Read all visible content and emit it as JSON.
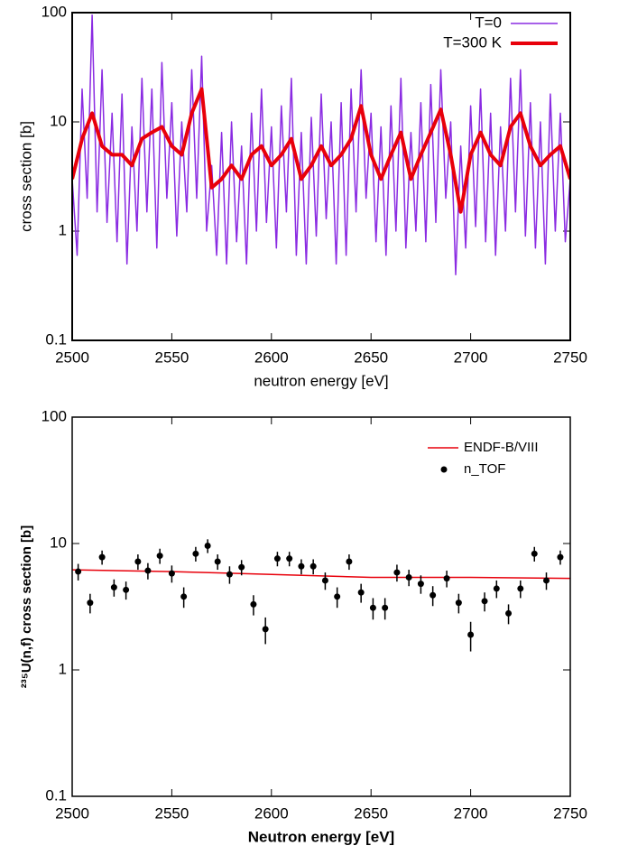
{
  "chart_data": [
    {
      "type": "line",
      "xlabel": "neutron energy [eV]",
      "ylabel": "cross section [b]",
      "yscale": "log",
      "xlim": [
        2500,
        2750
      ],
      "xticks": [
        2500,
        2550,
        2600,
        2650,
        2700,
        2750
      ],
      "ylim": [
        0.1,
        100
      ],
      "yticks": [
        0.1,
        1,
        10,
        100
      ],
      "legend": "upper right",
      "series": [
        {
          "name": "T=0",
          "color": "#8a2be2",
          "width": 1.5,
          "x": [
            2500,
            2502.5,
            2505,
            2507.5,
            2510,
            2512.5,
            2515,
            2517.5,
            2520,
            2522.5,
            2525,
            2527.5,
            2530,
            2532.5,
            2535,
            2537.5,
            2540,
            2542.5,
            2545,
            2547.5,
            2550,
            2552.5,
            2555,
            2557.5,
            2560,
            2562.5,
            2565,
            2567.5,
            2570,
            2572.5,
            2575,
            2577.5,
            2580,
            2582.5,
            2585,
            2587.5,
            2590,
            2592.5,
            2595,
            2597.5,
            2600,
            2602.5,
            2605,
            2607.5,
            2610,
            2612.5,
            2615,
            2617.5,
            2620,
            2622.5,
            2625,
            2627.5,
            2630,
            2632.5,
            2635,
            2637.5,
            2640,
            2642.5,
            2645,
            2647.5,
            2650,
            2652.5,
            2655,
            2657.5,
            2660,
            2662.5,
            2665,
            2667.5,
            2670,
            2672.5,
            2675,
            2677.5,
            2680,
            2682.5,
            2685,
            2687.5,
            2690,
            2692.5,
            2695,
            2697.5,
            2700,
            2702.5,
            2705,
            2707.5,
            2710,
            2712.5,
            2715,
            2717.5,
            2720,
            2722.5,
            2725,
            2727.5,
            2730,
            2732.5,
            2735,
            2737.5,
            2740,
            2742.5,
            2745,
            2747.5,
            2750
          ],
          "values": [
            3.0,
            0.6,
            20,
            2,
            95,
            1.5,
            30,
            1.2,
            12,
            0.8,
            18,
            0.5,
            9,
            1.0,
            25,
            1.5,
            20,
            0.7,
            35,
            2.0,
            15,
            0.9,
            10,
            1.5,
            30,
            2.0,
            40,
            1.0,
            4,
            0.6,
            8,
            0.5,
            10,
            0.8,
            6,
            0.5,
            12,
            1.0,
            20,
            1.2,
            9,
            0.7,
            14,
            1.5,
            25,
            0.6,
            8,
            0.5,
            11,
            0.9,
            18,
            1.3,
            10,
            0.5,
            15,
            0.6,
            20,
            1.5,
            30,
            2.0,
            12,
            0.8,
            9,
            0.6,
            14,
            1.0,
            25,
            0.7,
            8,
            1.0,
            15,
            0.8,
            22,
            1.2,
            30,
            2.0,
            10,
            0.4,
            6,
            0.7,
            14,
            1.1,
            20,
            0.8,
            12,
            0.6,
            9,
            1.0,
            25,
            1.5,
            30,
            0.9,
            15,
            0.7,
            10,
            0.5,
            18,
            1.0,
            12,
            0.8,
            3.0
          ]
        },
        {
          "name": "T=300 K",
          "color": "#e8000b",
          "width": 4,
          "x": [
            2500,
            2505,
            2510,
            2515,
            2520,
            2525,
            2530,
            2535,
            2540,
            2545,
            2550,
            2555,
            2560,
            2565,
            2570,
            2575,
            2580,
            2585,
            2590,
            2595,
            2600,
            2605,
            2610,
            2615,
            2620,
            2625,
            2630,
            2635,
            2640,
            2645,
            2650,
            2655,
            2660,
            2665,
            2670,
            2675,
            2680,
            2685,
            2690,
            2695,
            2700,
            2705,
            2710,
            2715,
            2720,
            2725,
            2730,
            2735,
            2740,
            2745,
            2750
          ],
          "values": [
            3,
            7,
            12,
            6,
            5,
            5,
            4,
            7,
            8,
            9,
            6,
            5,
            12,
            20,
            2.5,
            3,
            4,
            3,
            5,
            6,
            4,
            5,
            7,
            3,
            4,
            6,
            4,
            5,
            7,
            14,
            5,
            3,
            5,
            8,
            3,
            5,
            8,
            13,
            5,
            1.5,
            5,
            8,
            5,
            4,
            9,
            12,
            6,
            4,
            5,
            6,
            3
          ]
        }
      ]
    },
    {
      "type": "errorbar",
      "xlabel": "Neutron energy [eV]",
      "ylabel": "²³⁵U(n,f) cross section [b]",
      "yscale": "log",
      "xlim": [
        2500,
        2750
      ],
      "xticks": [
        2500,
        2550,
        2600,
        2650,
        2700,
        2750
      ],
      "ylim": [
        0.1,
        100
      ],
      "yticks": [
        0.1,
        1,
        10,
        100
      ],
      "legend": "upper right",
      "series": [
        {
          "name": "ENDF-B/VIII",
          "color": "#e8000b",
          "x": [
            2500,
            2550,
            2600,
            2650,
            2700,
            2750
          ],
          "values": [
            6.2,
            6.0,
            5.7,
            5.4,
            5.4,
            5.3
          ]
        },
        {
          "name": "n_TOF",
          "color": "#000000",
          "x": [
            2503,
            2509,
            2515,
            2521,
            2527,
            2533,
            2538,
            2544,
            2550,
            2556,
            2562,
            2568,
            2573,
            2579,
            2585,
            2591,
            2597,
            2603,
            2609,
            2615,
            2621,
            2627,
            2633,
            2639,
            2645,
            2651,
            2657,
            2663,
            2669,
            2675,
            2681,
            2688,
            2694,
            2700,
            2707,
            2713,
            2719,
            2725,
            2732,
            2738,
            2745
          ],
          "values": [
            6.0,
            3.4,
            7.8,
            4.5,
            4.3,
            7.2,
            6.1,
            8.0,
            5.8,
            3.8,
            8.3,
            9.6,
            7.2,
            5.7,
            6.5,
            3.3,
            2.1,
            7.6,
            7.6,
            6.6,
            6.6,
            5.1,
            3.8,
            7.2,
            4.1,
            3.1,
            3.1,
            5.9,
            5.4,
            4.8,
            3.9,
            5.3,
            3.4,
            1.9,
            3.5,
            4.4,
            2.8,
            4.4,
            8.3,
            5.1,
            7.8
          ],
          "errors": [
            0.9,
            0.6,
            1.0,
            0.7,
            0.7,
            1.0,
            0.9,
            1.1,
            0.9,
            0.7,
            1.1,
            1.2,
            1.0,
            0.9,
            0.9,
            0.6,
            0.5,
            1.0,
            1.0,
            0.9,
            0.9,
            0.8,
            0.7,
            1.0,
            0.7,
            0.6,
            0.6,
            0.9,
            0.8,
            0.8,
            0.7,
            0.8,
            0.6,
            0.5,
            0.6,
            0.7,
            0.5,
            0.7,
            1.1,
            0.8,
            1.0
          ]
        }
      ]
    }
  ]
}
